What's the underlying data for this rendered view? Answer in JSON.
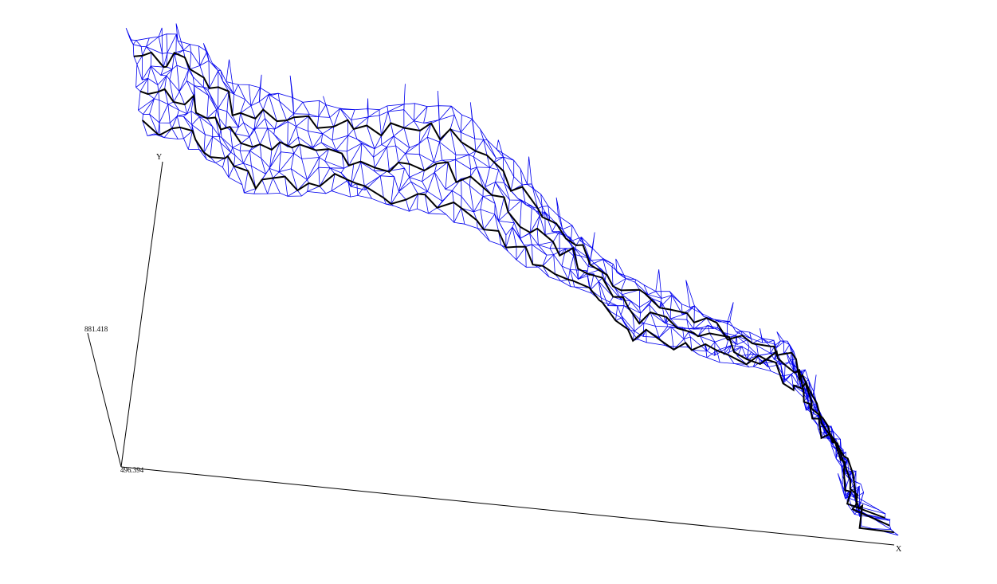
{
  "axes": {
    "x_label": "X",
    "y_label": "Y",
    "z_top_value": "881.418",
    "origin_value": "496.394"
  },
  "colors": {
    "mesh": "#0000ee",
    "contour": "#000000",
    "axes": "#000000",
    "background": "#ffffff"
  },
  "view": {
    "type": "3d-wireframe-surface"
  }
}
